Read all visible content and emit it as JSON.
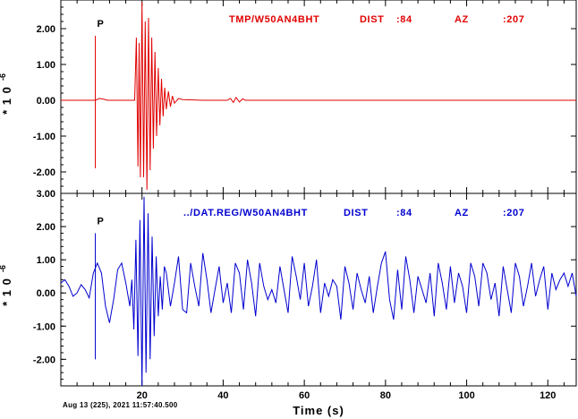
{
  "chart_data": [
    {
      "type": "line",
      "panel": "top",
      "color": "#e00000",
      "title": "",
      "ylabel_base": "* 1 0",
      "ylabel_exp": "-6",
      "xlim": [
        0,
        127
      ],
      "ylim": [
        -2.6,
        2.8
      ],
      "yticks": [
        -2.0,
        -1.0,
        0.0,
        1.0,
        2.0
      ],
      "ytick_labels": [
        "-2.00",
        "-1.00",
        "0.00",
        "1.00",
        "2.00"
      ],
      "phase_marker": {
        "label": "P",
        "t": 8.5,
        "y_top": 1.8,
        "y_bottom": -1.9
      },
      "trace_label": {
        "name": "TMP/W50AN4BHT",
        "dist_label": "DIST",
        "dist": ":84",
        "az_label": "AZ",
        "az": ":207"
      },
      "series": [
        {
          "x": [
            0,
            8.5,
            9.5,
            10.5,
            11.5,
            12.5,
            18.2,
            18.6,
            19.0,
            19.3,
            19.6,
            20.0,
            20.4,
            20.8,
            21.2,
            21.6,
            22.0,
            22.4,
            22.8,
            23.2,
            23.6,
            24.0,
            24.4,
            24.8,
            25.2,
            25.6,
            26.0,
            26.5,
            27.0,
            27.5,
            28.0,
            29.0,
            30.0,
            35.0,
            41.0,
            41.8,
            42.5,
            43.2,
            44.0,
            44.8,
            45.5,
            47.0,
            50.0,
            60.0,
            80.0,
            100.0,
            127.0
          ],
          "y": [
            0.0,
            0.0,
            0.05,
            0.03,
            0.0,
            0.0,
            0.0,
            1.75,
            -1.85,
            1.6,
            -2.15,
            2.75,
            -2.15,
            2.2,
            -2.5,
            2.3,
            -1.95,
            1.75,
            -1.35,
            1.35,
            -1.0,
            0.9,
            -0.7,
            0.6,
            -0.45,
            0.35,
            -0.25,
            0.25,
            -0.18,
            0.12,
            -0.08,
            0.05,
            0.02,
            0.0,
            0.0,
            0.05,
            -0.06,
            0.08,
            -0.05,
            0.04,
            0.0,
            0.0,
            0.0,
            0.0,
            0.0,
            0.0,
            0.0
          ]
        }
      ]
    },
    {
      "type": "line",
      "panel": "bottom",
      "color": "#0000d0",
      "title": "",
      "ylabel_base": "* 1 0",
      "ylabel_exp": "-6",
      "xlim": [
        0,
        127
      ],
      "ylim": [
        -2.8,
        3.0
      ],
      "yticks": [
        -2.0,
        -1.0,
        0.0,
        1.0,
        2.0,
        3.0
      ],
      "ytick_labels": [
        "-2.00",
        "-1.00",
        "0.00",
        "1.00",
        "2.00",
        "3.00"
      ],
      "phase_marker": {
        "label": "P",
        "t": 8.5,
        "y_top": 1.8,
        "y_bottom": -2.0
      },
      "trace_label": {
        "name": "../DAT.REG/W50AN4BHT",
        "dist_label": "DIST",
        "dist": ":84",
        "az_label": "AZ",
        "az": ":207"
      },
      "series": [
        {
          "x": [
            0,
            1,
            2,
            3,
            4,
            5,
            6,
            7,
            8,
            9,
            10,
            11,
            12,
            13,
            14,
            15,
            16,
            17,
            17.5,
            18,
            18.5,
            19,
            19.5,
            20,
            20.5,
            21,
            21.5,
            22,
            22.5,
            23,
            23.5,
            24,
            24.5,
            25,
            25.5,
            26,
            27,
            28,
            29,
            30,
            31,
            32,
            33,
            34,
            35,
            36,
            37,
            38,
            39,
            40,
            41,
            42,
            43,
            44,
            45,
            46,
            47,
            48,
            49,
            50,
            51,
            52,
            53,
            54,
            55,
            56,
            57,
            58,
            59,
            60,
            61,
            62,
            63,
            64,
            65,
            66,
            67,
            68,
            69,
            70,
            71,
            72,
            73,
            74,
            75,
            76,
            77,
            78,
            79,
            80,
            81,
            82,
            83,
            84,
            85,
            86,
            87,
            88,
            89,
            90,
            91,
            92,
            93,
            94,
            95,
            96,
            97,
            98,
            99,
            100,
            101,
            102,
            103,
            104,
            105,
            106,
            107,
            108,
            109,
            110,
            111,
            112,
            113,
            114,
            115,
            116,
            117,
            118,
            119,
            120,
            121,
            122,
            123,
            124,
            125,
            126,
            127
          ],
          "y": [
            0.3,
            0.4,
            0.2,
            -0.1,
            0.0,
            0.25,
            0.1,
            -0.15,
            0.6,
            0.9,
            0.6,
            -0.4,
            -0.9,
            -0.2,
            0.7,
            0.9,
            0.3,
            -0.4,
            0.4,
            -1.1,
            1.6,
            -1.9,
            2.2,
            -2.8,
            2.9,
            -2.4,
            2.4,
            -2.0,
            1.7,
            -1.3,
            1.1,
            -0.7,
            0.5,
            -0.5,
            0.8,
            0.6,
            -0.4,
            0.3,
            1.1,
            -0.5,
            -0.6,
            0.9,
            0.2,
            -0.4,
            1.2,
            0.4,
            -0.6,
            0.1,
            0.8,
            -0.3,
            0.3,
            -0.6,
            0.9,
            0.6,
            -0.5,
            1.0,
            0.3,
            -0.7,
            0.9,
            0.2,
            -0.2,
            0.1,
            -0.3,
            0.8,
            0.1,
            -0.6,
            1.1,
            0.5,
            -0.2,
            0.9,
            -0.4,
            0.2,
            1.0,
            -0.6,
            0.3,
            -0.1,
            0.4,
            0.2,
            -0.8,
            0.8,
            0.3,
            -0.5,
            0.6,
            0.1,
            -0.3,
            0.5,
            -0.6,
            0.2,
            0.9,
            1.25,
            -0.2,
            -0.8,
            0.7,
            -0.5,
            1.1,
            0.4,
            -0.6,
            0.5,
            0.1,
            -0.3,
            0.6,
            -0.7,
            0.9,
            0.3,
            -0.5,
            0.8,
            -0.3,
            0.6,
            0.2,
            -0.6,
            0.9,
            0.5,
            -0.4,
            0.9,
            0.6,
            -0.2,
            0.3,
            -0.7,
            0.8,
            0.1,
            -0.6,
            0.9,
            0.5,
            -0.4,
            0.2,
            0.9,
            -0.1,
            0.4,
            0.8,
            -0.5,
            0.6,
            0.1,
            0.4,
            0.6,
            0.2,
            0.6,
            -0.1
          ]
        }
      ]
    }
  ],
  "x_axis": {
    "xlabel": "Time (s)",
    "ticks": [
      20,
      40,
      60,
      80,
      100,
      120
    ],
    "tick_labels": [
      "20",
      "40",
      "60",
      "80",
      "100",
      "120"
    ]
  },
  "timestamp": "Aug 13 (225), 2021 11:57:40.500"
}
